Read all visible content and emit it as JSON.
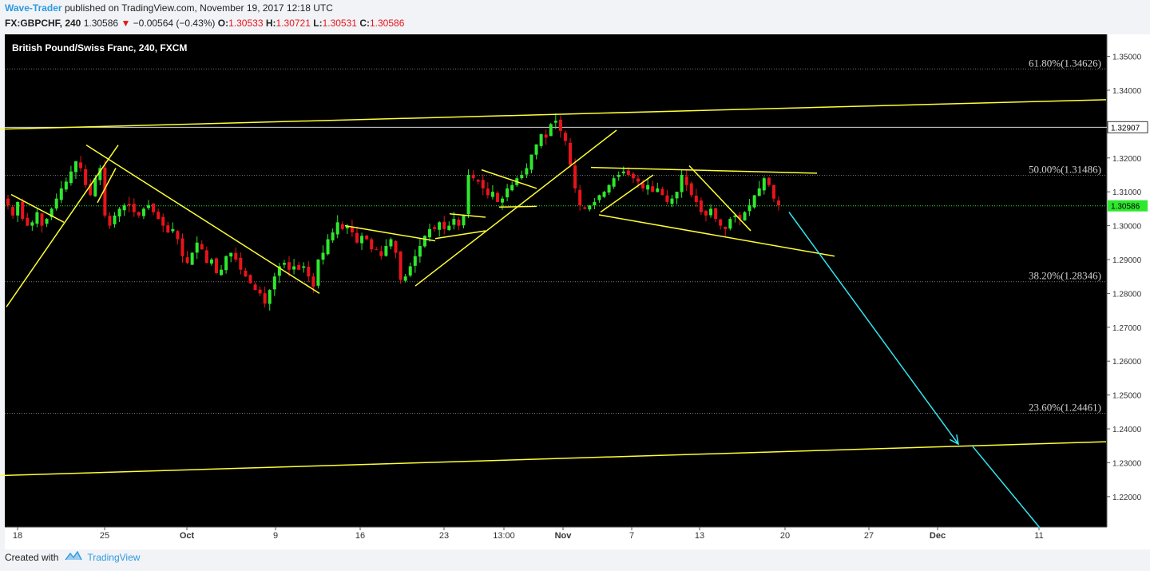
{
  "header": {
    "author": "Wave-Trader",
    "published": "published on TradingView.com, November 19, 2017 12:18 UTC",
    "symbol": "FX:GBPCHF, 240",
    "last": "1.30586",
    "change": "−0.00564 (−0.43%)",
    "o_label": "O:",
    "o": "1.30533",
    "h_label": "H:",
    "h": "1.30721",
    "l_label": "L:",
    "l": "1.30531",
    "c_label": "C:",
    "c": "1.30586"
  },
  "chart_title": "British Pound/Swiss Franc, 240, FXCM",
  "footer": {
    "created_with": "Created with",
    "brand": "TradingView"
  },
  "colors": {
    "background": "#000000",
    "up": "#2ee82e",
    "down": "#e8141b",
    "trendline": "#ffff33",
    "arrow": "#33e6f2",
    "accent": "#2e9ae0"
  },
  "chart_data": {
    "type": "candlestick",
    "ylim": [
      1.211,
      1.3565
    ],
    "x_ticks": [
      "18",
      "25",
      "Oct",
      "9",
      "16",
      "23",
      "13:00",
      "Nov",
      "7",
      "13",
      "20",
      "27",
      "Dec",
      "11"
    ],
    "y_ticks": [
      "1.35000",
      "1.34000",
      "1.33000",
      "1.32000",
      "1.31000",
      "1.30000",
      "1.29000",
      "1.28000",
      "1.27000",
      "1.26000",
      "1.25000",
      "1.24000",
      "1.23000",
      "1.22000"
    ],
    "price_labels": [
      {
        "value": 1.32907,
        "text": "1.32907",
        "kind": "line"
      },
      {
        "value": 1.30586,
        "text": "1.30586",
        "kind": "last"
      }
    ],
    "fib_levels": [
      {
        "label": "61.80%(1.34626)",
        "value": 1.34626
      },
      {
        "label": "50.00%(1.31486)",
        "value": 1.31486
      },
      {
        "label": "38.20%(1.28346)",
        "value": 1.28346
      },
      {
        "label": "23.60%(1.24461)",
        "value": 1.24461
      }
    ],
    "closes": [
      1.306,
      1.303,
      1.307,
      1.302,
      1.3,
      1.301,
      1.304,
      1.3,
      1.302,
      1.305,
      1.308,
      1.311,
      1.313,
      1.316,
      1.319,
      1.317,
      1.312,
      1.309,
      1.314,
      1.317,
      1.303,
      1.3,
      1.303,
      1.305,
      1.306,
      1.306,
      1.304,
      1.303,
      1.305,
      1.306,
      1.304,
      1.302,
      1.3,
      1.298,
      1.299,
      1.296,
      1.291,
      1.289,
      1.292,
      1.295,
      1.293,
      1.289,
      1.29,
      1.286,
      1.287,
      1.291,
      1.292,
      1.29,
      1.287,
      1.285,
      1.283,
      1.281,
      1.28,
      1.277,
      1.281,
      1.285,
      1.288,
      1.289,
      1.287,
      1.288,
      1.287,
      1.288,
      1.285,
      1.282,
      1.29,
      1.292,
      1.296,
      1.298,
      1.301,
      1.299,
      1.3,
      1.298,
      1.295,
      1.297,
      1.296,
      1.293,
      1.293,
      1.291,
      1.294,
      1.296,
      1.292,
      1.284,
      1.285,
      1.288,
      1.291,
      1.294,
      1.297,
      1.299,
      1.299,
      1.301,
      1.299,
      1.3,
      1.302,
      1.3,
      1.303,
      1.315,
      1.314,
      1.313,
      1.311,
      1.309,
      1.31,
      1.307,
      1.308,
      1.311,
      1.312,
      1.314,
      1.315,
      1.317,
      1.321,
      1.324,
      1.327,
      1.326,
      1.33,
      1.331,
      1.328,
      1.325,
      1.318,
      1.311,
      1.306,
      1.305,
      1.306,
      1.307,
      1.309,
      1.31,
      1.312,
      1.314,
      1.315,
      1.316,
      1.315,
      1.314,
      1.313,
      1.311,
      1.312,
      1.31,
      1.311,
      1.309,
      1.307,
      1.308,
      1.31,
      1.315,
      1.312,
      1.309,
      1.307,
      1.304,
      1.303,
      1.305,
      1.302,
      1.3,
      1.299,
      1.302,
      1.303,
      1.302,
      1.304,
      1.306,
      1.309,
      1.311,
      1.314,
      1.312,
      1.308,
      1.306
    ],
    "trendlines": [
      {
        "from": [
          0,
          1.3285
        ],
        "to": [
          1385,
          1.3372
        ],
        "color": "yellow"
      },
      {
        "from": [
          0,
          1.2262
        ],
        "to": [
          1385,
          1.2362
        ],
        "color": "yellow"
      },
      {
        "from": [
          8,
          1.276
        ],
        "to": [
          148,
          1.3238
        ],
        "color": "yellow"
      },
      {
        "from": [
          14,
          1.3092
        ],
        "to": [
          80,
          1.301
        ],
        "color": "yellow"
      },
      {
        "from": [
          108,
          1.3238
        ],
        "to": [
          400,
          1.28
        ],
        "color": "yellow"
      },
      {
        "from": [
          122,
          1.3068
        ],
        "to": [
          145,
          1.317
        ],
        "color": "yellow"
      },
      {
        "from": [
          432,
          1.3
        ],
        "to": [
          545,
          1.2955
        ],
        "color": "yellow"
      },
      {
        "from": [
          520,
          1.2822
        ],
        "to": [
          772,
          1.3282
        ],
        "color": "yellow"
      },
      {
        "from": [
          545,
          1.2962
        ],
        "to": [
          608,
          1.2985
        ],
        "color": "yellow"
      },
      {
        "from": [
          563,
          1.3035
        ],
        "to": [
          608,
          1.3025
        ],
        "color": "yellow"
      },
      {
        "from": [
          603,
          1.3165
        ],
        "to": [
          672,
          1.311
        ],
        "color": "yellow"
      },
      {
        "from": [
          625,
          1.3055
        ],
        "to": [
          672,
          1.3057
        ],
        "color": "yellow"
      },
      {
        "from": [
          740,
          1.3172
        ],
        "to": [
          1023,
          1.3155
        ],
        "color": "yellow"
      },
      {
        "from": [
          750,
          1.3032
        ],
        "to": [
          1045,
          1.291
        ],
        "color": "yellow"
      },
      {
        "from": [
          752,
          1.304
        ],
        "to": [
          818,
          1.315
        ],
        "color": "yellow"
      },
      {
        "from": [
          863,
          1.3177
        ],
        "to": [
          940,
          1.2985
        ],
        "color": "yellow"
      }
    ],
    "arrows": [
      {
        "from": [
          988,
          1.304
        ],
        "to": [
          1200,
          1.2355
        ],
        "color": "cyan",
        "head": true
      },
      {
        "from": [
          1218,
          1.2348
        ],
        "to": [
          1302,
          1.2108
        ],
        "color": "cyan",
        "head": false
      }
    ]
  }
}
